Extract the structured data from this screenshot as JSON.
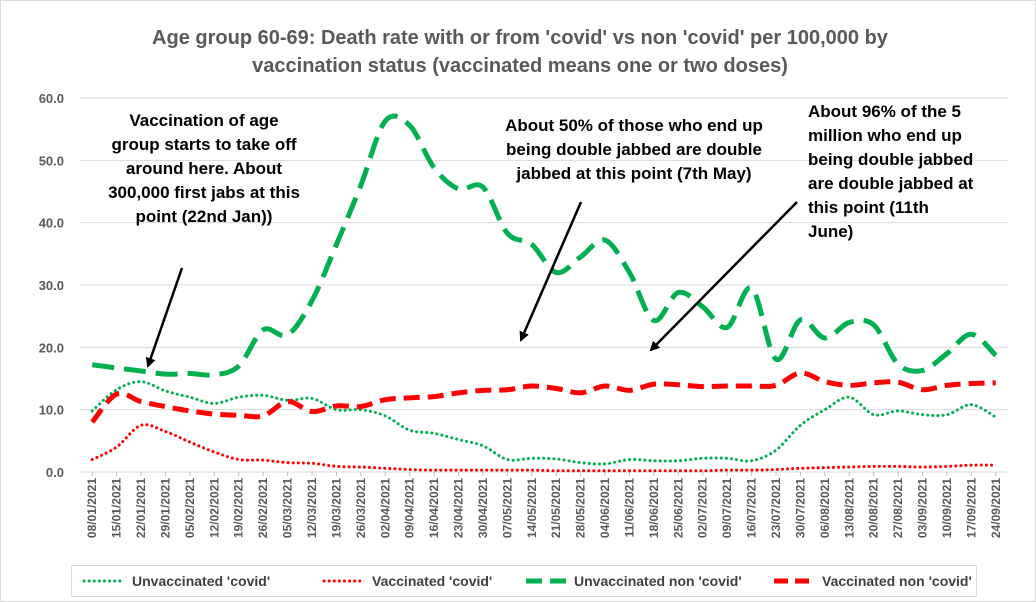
{
  "chart_data": {
    "type": "line",
    "title": "Age group 60-69: Death rate with or from 'covid' vs non 'covid' per 100,000 by vaccination status (vaccinated means one or two doses)",
    "xlabel": "",
    "ylabel": "",
    "ylim": [
      0,
      60
    ],
    "yticks": [
      "0.0",
      "10.0",
      "20.0",
      "30.0",
      "40.0",
      "50.0",
      "60.0"
    ],
    "grid": true,
    "legend_position": "bottom",
    "x": [
      "08/01/2021",
      "15/01/2021",
      "22/01/2021",
      "29/01/2021",
      "05/02/2021",
      "12/02/2021",
      "19/02/2021",
      "26/02/2021",
      "05/03/2021",
      "12/03/2021",
      "19/03/2021",
      "26/03/2021",
      "02/04/2021",
      "09/04/2021",
      "16/04/2021",
      "23/04/2021",
      "30/04/2021",
      "07/05/2021",
      "14/05/2021",
      "21/05/2021",
      "28/05/2021",
      "04/06/2021",
      "11/06/2021",
      "18/06/2021",
      "25/06/2021",
      "02/07/2021",
      "09/07/2021",
      "16/07/2021",
      "23/07/2021",
      "30/07/2021",
      "06/08/2021",
      "13/08/2021",
      "20/08/2021",
      "27/08/2021",
      "03/09/2021",
      "10/09/2021",
      "17/09/2021",
      "24/09/2021"
    ],
    "series": [
      {
        "name": "Unvaccinated 'covid'",
        "color": "#00b050",
        "style": "dotted",
        "values": [
          9.8,
          13.2,
          14.5,
          13.0,
          12.0,
          11.0,
          12.0,
          12.3,
          11.5,
          11.8,
          10.0,
          10.0,
          9.0,
          6.7,
          6.2,
          5.2,
          4.2,
          2.0,
          2.2,
          2.1,
          1.5,
          1.3,
          2.0,
          1.8,
          1.8,
          2.2,
          2.2,
          1.8,
          3.5,
          7.5,
          10.0,
          12.0,
          9.2,
          9.8,
          9.2,
          9.2,
          10.8,
          8.8
        ]
      },
      {
        "name": "Vaccinated 'covid'",
        "color": "#ff0000",
        "style": "dotted",
        "values": [
          2.0,
          4.0,
          7.5,
          6.5,
          4.8,
          3.2,
          2.0,
          1.9,
          1.5,
          1.4,
          0.9,
          0.8,
          0.6,
          0.4,
          0.3,
          0.3,
          0.3,
          0.3,
          0.3,
          0.2,
          0.2,
          0.2,
          0.2,
          0.2,
          0.2,
          0.2,
          0.3,
          0.3,
          0.4,
          0.6,
          0.7,
          0.8,
          0.9,
          0.9,
          0.8,
          0.9,
          1.1,
          1.1
        ]
      },
      {
        "name": "Unvaccinated non 'covid'",
        "color": "#00b050",
        "style": "longdash",
        "values": [
          17.2,
          16.7,
          16.2,
          15.7,
          15.8,
          15.6,
          17.0,
          22.8,
          22.0,
          27.5,
          36.5,
          46.0,
          56.3,
          55.6,
          48.8,
          45.4,
          45.7,
          38.3,
          36.5,
          32.0,
          34.5,
          37.2,
          32.0,
          24.3,
          28.8,
          26.5,
          23.2,
          29.5,
          18.1,
          24.4,
          21.5,
          24.0,
          23.6,
          17.3,
          16.3,
          19.0,
          22.1,
          18.7
        ]
      },
      {
        "name": "Vaccinated non 'covid'",
        "color": "#ff0000",
        "style": "dash",
        "values": [
          8.0,
          12.5,
          11.3,
          10.5,
          9.8,
          9.3,
          9.1,
          9.0,
          11.3,
          9.7,
          10.6,
          10.5,
          11.6,
          11.9,
          12.1,
          12.7,
          13.1,
          13.2,
          13.8,
          13.4,
          12.7,
          13.8,
          13.1,
          14.1,
          14.0,
          13.7,
          13.8,
          13.8,
          13.9,
          15.9,
          14.5,
          13.9,
          14.3,
          14.4,
          13.2,
          13.9,
          14.2,
          14.3
        ]
      }
    ],
    "annotations": [
      "Vaccination of age group starts to take off around here. About 300,000 first jabs at this point (22nd Jan))",
      "About 50% of those who end up being double jabbed are double jabbed at this point (7th May)",
      "About 96% of the 5 million who end up being double jabbed are double jabbed at this point  (11th June)"
    ]
  }
}
